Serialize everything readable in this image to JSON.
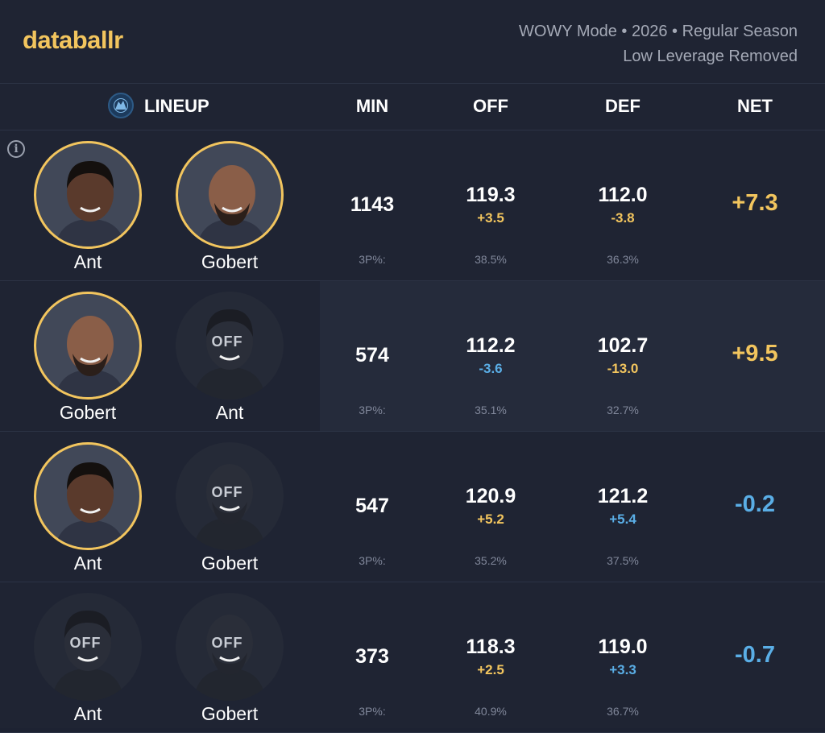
{
  "brand": {
    "logo_text": "databallr",
    "accent": "#f2c55e",
    "negative_color": "#5aaee6"
  },
  "meta": {
    "line1": "WOWY Mode • 2026 • Regular Season",
    "line2": "Low Leverage Removed"
  },
  "columns": {
    "lineup": "LINEUP",
    "min": "MIN",
    "off": "OFF",
    "def": "DEF",
    "net": "NET"
  },
  "tp_label": "3P%:",
  "off_label": "OFF",
  "rows": [
    {
      "p1": {
        "name": "Ant",
        "status": "on"
      },
      "p2": {
        "name": "Gobert",
        "status": "on"
      },
      "min": "1143",
      "off": "119.3",
      "off_delta": "+3.5",
      "def": "112.0",
      "def_delta": "-3.8",
      "net": "+7.3",
      "off_3p": "38.5%",
      "def_3p": "36.3%"
    },
    {
      "p1": {
        "name": "Gobert",
        "status": "on"
      },
      "p2": {
        "name": "Ant",
        "status": "off"
      },
      "min": "574",
      "off": "112.2",
      "off_delta": "-3.6",
      "def": "102.7",
      "def_delta": "-13.0",
      "net": "+9.5",
      "off_3p": "35.1%",
      "def_3p": "32.7%"
    },
    {
      "p1": {
        "name": "Ant",
        "status": "on"
      },
      "p2": {
        "name": "Gobert",
        "status": "off"
      },
      "min": "547",
      "off": "120.9",
      "off_delta": "+5.2",
      "def": "121.2",
      "def_delta": "+5.4",
      "net": "-0.2",
      "off_3p": "35.2%",
      "def_3p": "37.5%"
    },
    {
      "p1": {
        "name": "Ant",
        "status": "off"
      },
      "p2": {
        "name": "Gobert",
        "status": "off"
      },
      "min": "373",
      "off": "118.3",
      "off_delta": "+2.5",
      "def": "119.0",
      "def_delta": "+3.3",
      "net": "-0.7",
      "off_3p": "40.9%",
      "def_3p": "36.7%"
    }
  ]
}
